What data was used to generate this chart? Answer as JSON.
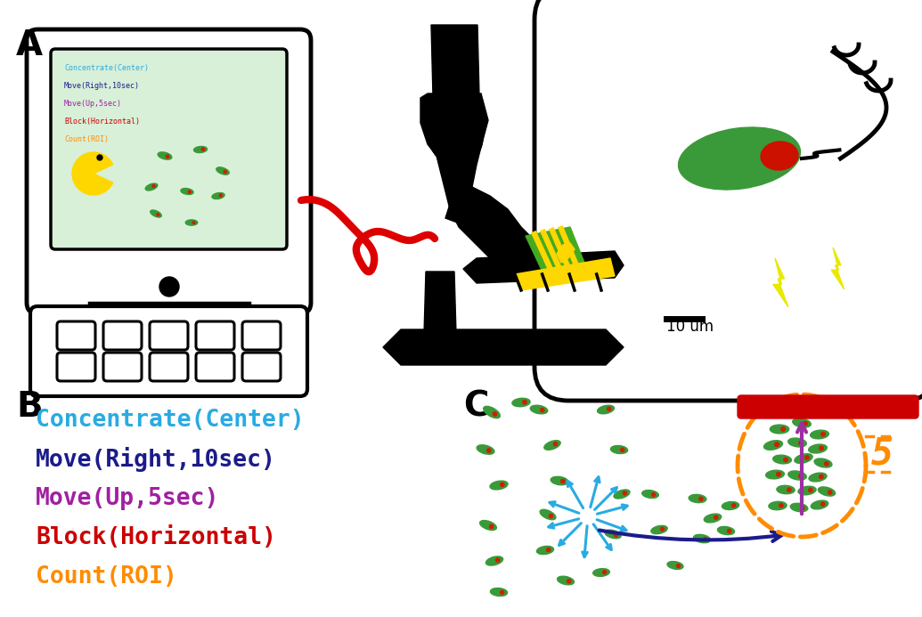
{
  "bg_color": "#ffffff",
  "code_lines": [
    {
      "text": "Concentrate(Center)",
      "color": "#29ABE2"
    },
    {
      "text": "Move(Right,10sec)",
      "color": "#1B1B8A"
    },
    {
      "text": "Move(Up,5sec)",
      "color": "#A020A0"
    },
    {
      "text": "Block(Horizontal)",
      "color": "#CC0000"
    },
    {
      "text": "Count(ROI)",
      "color": "#FF8C00"
    }
  ],
  "bacteria_green": "#3A9A3A",
  "bacteria_red_dot": "#CC2200",
  "pac_yellow": "#FFD700",
  "cable_red": "#DD0000",
  "scale_bar_label": "10 um",
  "roi_label": "5",
  "arrow_blue": "#1B1B8A",
  "arrow_cyan": "#29ABE2",
  "arrow_purple": "#9B2FA0",
  "dashed_circle_color": "#FF8C00",
  "red_bar_color": "#CC0000",
  "lightning_yellow": "#E8E800"
}
